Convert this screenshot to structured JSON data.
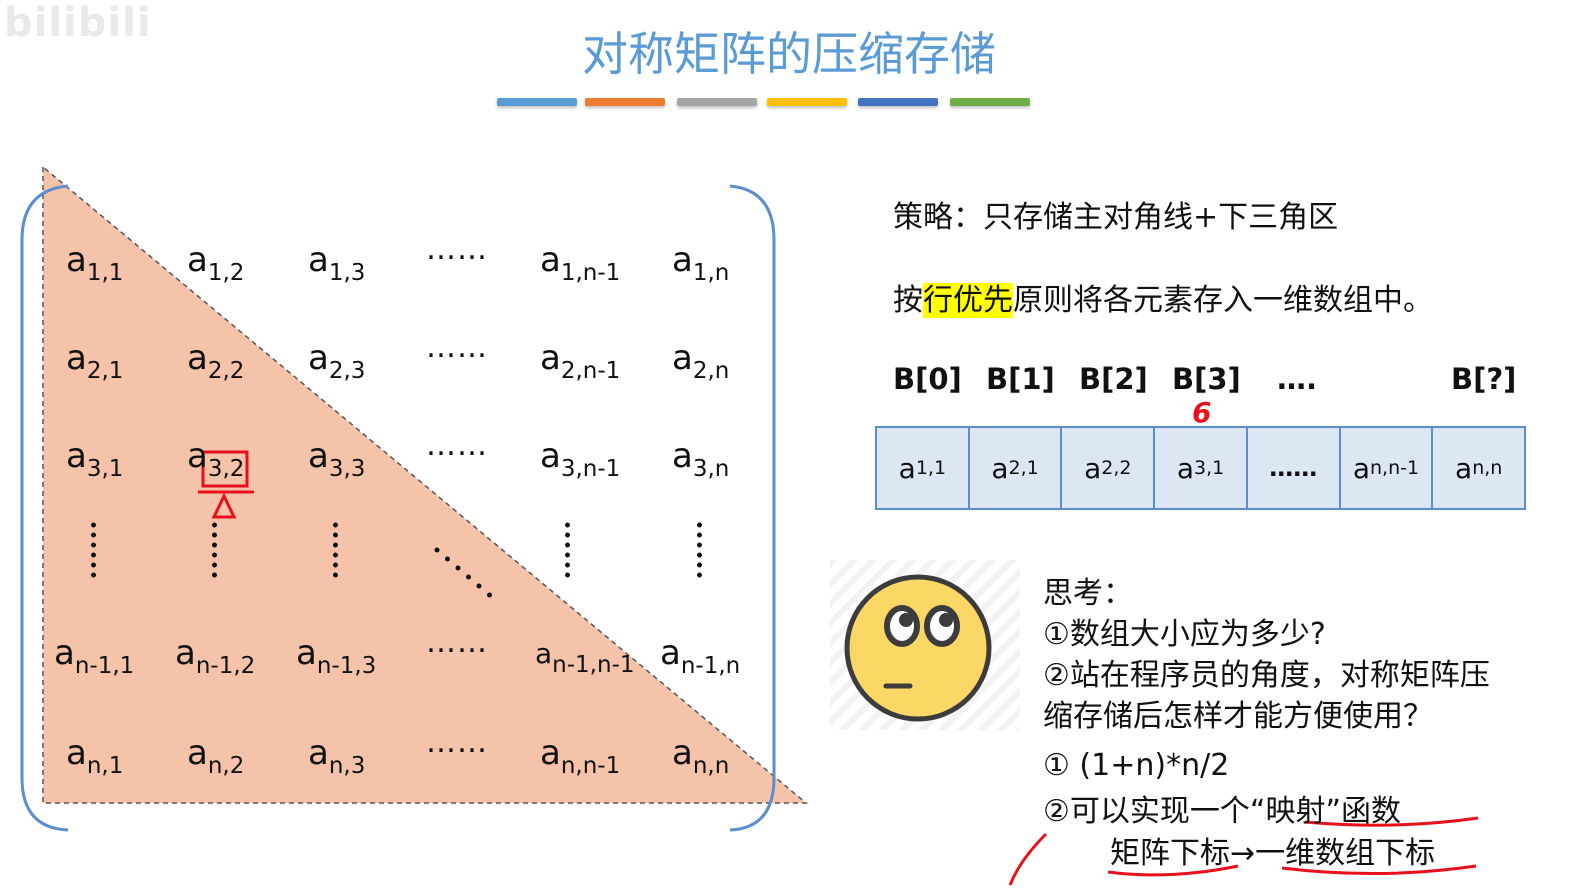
{
  "watermark": "bilibili",
  "title": "对称矩阵的压缩存储",
  "accent_colors": [
    "#5b9bd5",
    "#ed7d31",
    "#a5a5a5",
    "#ffc000",
    "#4472c4",
    "#70ad47"
  ],
  "matrix": {
    "rows": [
      [
        "a|1,1",
        "a|1,2",
        "a|1,3",
        "……",
        "a|1,n-1",
        "a|1,n"
      ],
      [
        "a|2,1",
        "a|2,2",
        "a|2,3",
        "……",
        "a|2,n-1",
        "a|2,n"
      ],
      [
        "a|3,1",
        "a|3,2",
        "a|3,3",
        "……",
        "a|3,n-1",
        "a|3,n"
      ],
      [
        "⋮",
        "⋮",
        "⋮",
        "⋱",
        "⋮",
        "⋮"
      ],
      [
        "a|n-1,1",
        "a|n-1,2",
        "a|n-1,3",
        "……",
        "a|n-1,n-1",
        "a|n-1,n"
      ],
      [
        "a|n,1",
        "a|n,2",
        "a|n,3",
        "……",
        "a|n,n-1",
        "a|n,n"
      ]
    ],
    "fill_color": "#f4c3aa",
    "bracket_color": "#5b8ed0"
  },
  "strategy_text": "策略：只存储主对角线+下三角区",
  "row_first": {
    "prefix": "按",
    "highlight": "行优先",
    "suffix": "原则将各元素存入一维数组中。"
  },
  "array_labels": [
    "B[0]",
    "B[1]",
    "B[2]",
    "B[3]",
    "….",
    "B[?]"
  ],
  "array_cells": [
    {
      "main": "a",
      "sub": "1,1"
    },
    {
      "main": "a",
      "sub": "2,1"
    },
    {
      "main": "a",
      "sub": "2,2"
    },
    {
      "main": "a",
      "sub": "3,1"
    },
    {
      "main": "……",
      "sub": ""
    },
    {
      "main": "a",
      "sub": "n,n-1"
    },
    {
      "main": "a",
      "sub": "n,n"
    }
  ],
  "annotation_mark": "6",
  "think": {
    "heading": "思考：",
    "q1": "①数组大小应为多少?",
    "q2_line1": "②站在程序员的角度，对称矩阵压",
    "q2_line2": "缩存储后怎样才能方便使用？"
  },
  "answers": {
    "a1": "① (1+n)*n/2",
    "a2_prefix": "②可以实现一个",
    "a2_quoted": "“映射”函数",
    "a3_left": "矩阵下标",
    "a3_arrow": "→",
    "a3_right": "一维数组下标"
  }
}
